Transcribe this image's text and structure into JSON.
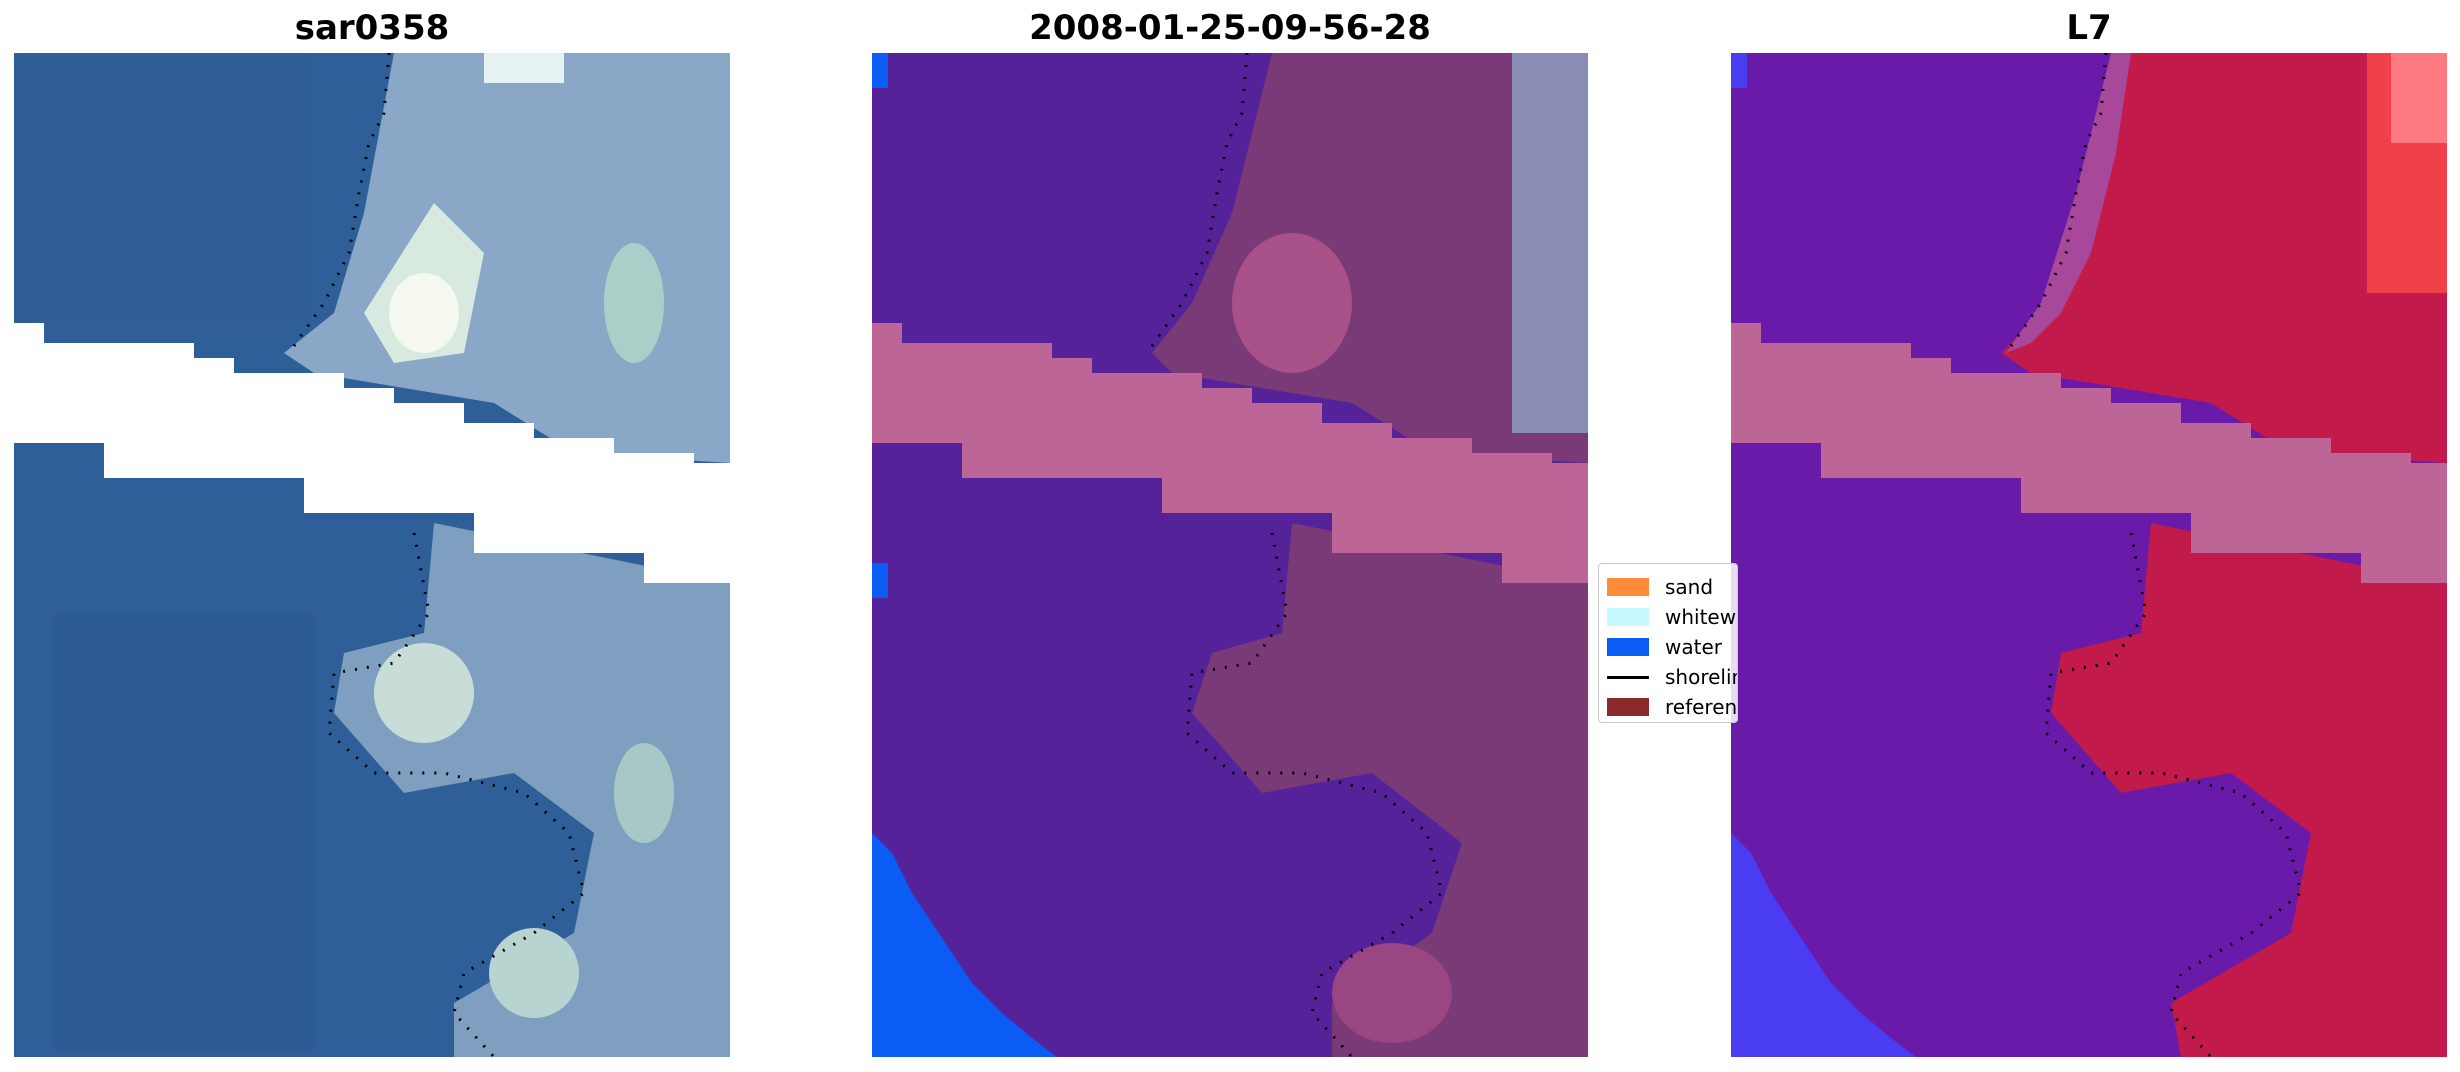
{
  "panels": [
    {
      "title": "sar0358"
    },
    {
      "title": "2008-01-25-09-56-28"
    },
    {
      "title": "L7"
    }
  ],
  "legend": {
    "items": [
      {
        "label": "sand",
        "color": "#ff8c3a",
        "kind": "patch"
      },
      {
        "label": "whitewater",
        "color": "#c8f8ff",
        "kind": "patch"
      },
      {
        "label": "water",
        "color": "#0a5cf5",
        "kind": "patch"
      },
      {
        "label": "shoreline",
        "color": "#000000",
        "kind": "line"
      },
      {
        "label": "reference shoreline",
        "color": "#8b2a2a",
        "kind": "patch"
      }
    ]
  },
  "colors": {
    "rgb_water": "#2f5f98",
    "rgb_land": "#8aa7c8",
    "class_water": "#55229a",
    "class_land": "#7a3a78",
    "class_nodata": "#bd6596",
    "class_ocean": "#0a5cf5",
    "mndwi_water": "#6a1aa8",
    "mndwi_land": "#c21a4a",
    "mndwi_nodata": "#bd6596"
  }
}
